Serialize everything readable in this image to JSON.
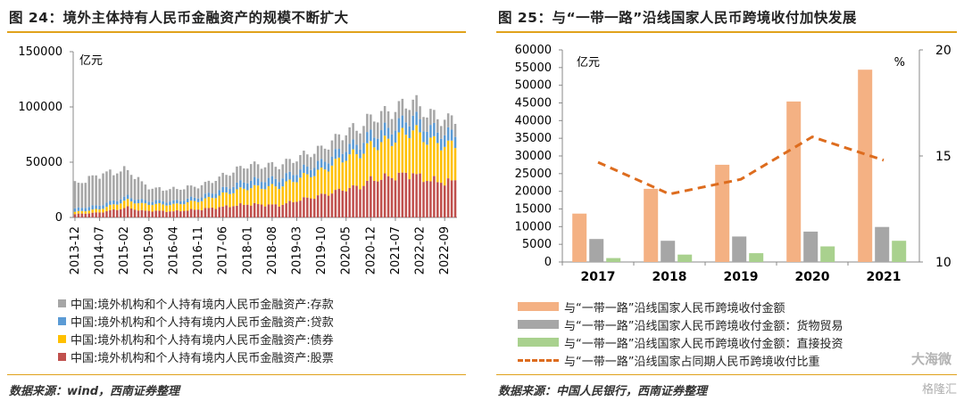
{
  "colors": {
    "rule": "#e0a21b",
    "deposits": "#a6a6a6",
    "loans": "#5b9bd5",
    "bonds": "#ffc000",
    "stocks": "#c0504d",
    "bar_total": "#f4b183",
    "bar_goods": "#a6a6a6",
    "bar_direct": "#a9d18e",
    "line_share": "#dd6c1e"
  },
  "left": {
    "title": "图 24：境外主体持有人民币金融资产的规模不断扩大",
    "unit": "亿元",
    "source": "数据来源：wind，西南证券整理",
    "legend": [
      {
        "label": "中国:境外机构和个人持有境内人民币金融资产:存款",
        "color": "#a6a6a6"
      },
      {
        "label": "中国:境外机构和个人持有境内人民币金融资产:贷款",
        "color": "#5b9bd5"
      },
      {
        "label": "中国:境外机构和个人持有境内人民币金融资产:债券",
        "color": "#ffc000"
      },
      {
        "label": "中国:境外机构和个人持有境内人民币金融资产:股票",
        "color": "#c0504d"
      }
    ]
  },
  "right": {
    "title": "图 25：与“一带一路”沿线国家人民币跨境收付加快发展",
    "unit_left": "亿元",
    "unit_right": "%",
    "source": "数据来源：中国人民银行，西南证券整理",
    "legend": [
      {
        "label": "与“一带一路”沿线国家人民币跨境收付金额",
        "kind": "bar",
        "color": "#f4b183"
      },
      {
        "label": "与“一带一路”沿线国家人民币跨境收付金额：货物贸易",
        "kind": "bar",
        "color": "#a6a6a6"
      },
      {
        "label": "与“一带一路”沿线国家人民币跨境收付金额：直接投资",
        "kind": "bar",
        "color": "#a9d18e"
      },
      {
        "label": "与“一带一路”沿线国家占同期人民币跨境收付比重",
        "kind": "line",
        "color": "#dd6c1e"
      }
    ]
  },
  "watermark": {
    "text": "大海微 ",
    "brand": "格隆汇"
  },
  "chart_data": [
    {
      "type": "bar",
      "stacked": true,
      "title": "境外主体持有人民币金融资产的规模不断扩大",
      "ylabel": "亿元",
      "ylim": [
        0,
        150000
      ],
      "yticks": [
        0,
        50000,
        100000,
        150000
      ],
      "xticks": [
        "2013-12",
        "2014-07",
        "2015-02",
        "2015-09",
        "2016-04",
        "2016-11",
        "2017-06",
        "2018-01",
        "2018-08",
        "2019-03",
        "2019-10",
        "2020-05",
        "2020-12",
        "2021-07",
        "2022-02",
        "2022-09"
      ],
      "x_start": "2013-12",
      "x_end": "2022-12",
      "frequency": "monthly",
      "series": [
        {
          "name": "中国:境外机构和个人持有境内人民币金融资产:股票",
          "color": "#c0504d",
          "keyframes": [
            [
              0,
              3000
            ],
            [
              7,
              4500
            ],
            [
              15,
              9000
            ],
            [
              19,
              6000
            ],
            [
              22,
              6000
            ],
            [
              28,
              5500
            ],
            [
              36,
              7500
            ],
            [
              49,
              12000
            ],
            [
              58,
              11000
            ],
            [
              64,
              16000
            ],
            [
              70,
              20000
            ],
            [
              77,
              26000
            ],
            [
              81,
              28000
            ],
            [
              84,
              34000
            ],
            [
              90,
              37000
            ],
            [
              96,
              40000
            ],
            [
              98,
              36000
            ],
            [
              102,
              33000
            ],
            [
              106,
              32000
            ],
            [
              108,
              33000
            ]
          ]
        },
        {
          "name": "中国:境外机构和个人持有境内人民币金融资产:债券",
          "color": "#ffc000",
          "keyframes": [
            [
              0,
              2000
            ],
            [
              7,
              3000
            ],
            [
              15,
              6500
            ],
            [
              22,
              6000
            ],
            [
              28,
              6000
            ],
            [
              36,
              8000
            ],
            [
              49,
              15000
            ],
            [
              58,
              17000
            ],
            [
              64,
              20000
            ],
            [
              70,
              22000
            ],
            [
              77,
              29000
            ],
            [
              81,
              30000
            ],
            [
              84,
              31000
            ],
            [
              90,
              33000
            ],
            [
              96,
              40000
            ],
            [
              98,
              38000
            ],
            [
              102,
              35000
            ],
            [
              106,
              33000
            ],
            [
              108,
              33000
            ]
          ]
        },
        {
          "name": "中国:境外机构和个人持有境内人民币金融资产:贷款",
          "color": "#5b9bd5",
          "keyframes": [
            [
              0,
              3000
            ],
            [
              7,
              3500
            ],
            [
              15,
              3500
            ],
            [
              22,
              3000
            ],
            [
              28,
              3000
            ],
            [
              36,
              3500
            ],
            [
              49,
              6500
            ],
            [
              58,
              7000
            ],
            [
              64,
              7000
            ],
            [
              70,
              7500
            ],
            [
              77,
              8500
            ],
            [
              81,
              9000
            ],
            [
              84,
              10000
            ],
            [
              90,
              11000
            ],
            [
              96,
              12000
            ],
            [
              98,
              11500
            ],
            [
              102,
              11000
            ],
            [
              106,
              10500
            ],
            [
              108,
              10500
            ]
          ]
        },
        {
          "name": "中国:境外机构和个人持有境内人民币金融资产:存款",
          "color": "#a6a6a6",
          "keyframes": [
            [
              0,
              22000
            ],
            [
              7,
              28000
            ],
            [
              15,
              24000
            ],
            [
              19,
              16000
            ],
            [
              22,
              11000
            ],
            [
              28,
              11000
            ],
            [
              36,
              10000
            ],
            [
              49,
              14000
            ],
            [
              58,
              12000
            ],
            [
              64,
              12000
            ],
            [
              70,
              12500
            ],
            [
              77,
              14000
            ],
            [
              81,
              14500
            ],
            [
              84,
              15000
            ],
            [
              90,
              15500
            ],
            [
              96,
              14000
            ],
            [
              98,
              13500
            ],
            [
              102,
              12500
            ],
            [
              106,
              12500
            ],
            [
              108,
              13500
            ]
          ]
        }
      ]
    },
    {
      "type": "bar",
      "title": "与“一带一路”沿线国家人民币跨境收付加快发展",
      "categories": [
        "2017",
        "2018",
        "2019",
        "2020",
        "2021"
      ],
      "ylabel": "亿元",
      "ylim": [
        0,
        60000
      ],
      "yticks": [
        0,
        5000,
        10000,
        15000,
        20000,
        25000,
        30000,
        35000,
        40000,
        45000,
        50000,
        55000,
        60000
      ],
      "y2label": "%",
      "y2lim": [
        10,
        20
      ],
      "y2ticks": [
        10,
        15,
        20
      ],
      "series": [
        {
          "name": "与“一带一路”沿线国家人民币跨境收付金额",
          "values": [
            13700,
            20700,
            27500,
            45400,
            54400
          ],
          "color": "#f4b183"
        },
        {
          "name": "与“一带一路”沿线国家人民币跨境收付金额：货物贸易",
          "values": [
            6500,
            6000,
            7200,
            8600,
            9900
          ],
          "color": "#a6a6a6"
        },
        {
          "name": "与“一带一路”沿线国家人民币跨境收付金额：直接投资",
          "values": [
            1100,
            2100,
            2500,
            4400,
            6000
          ],
          "color": "#a9d18e"
        },
        {
          "name": "与“一带一路”沿线国家占同期人民币跨境收付比重",
          "type": "line",
          "axis": "right",
          "values": [
            14.7,
            13.2,
            13.9,
            15.9,
            14.8
          ],
          "color": "#dd6c1e"
        }
      ]
    }
  ]
}
